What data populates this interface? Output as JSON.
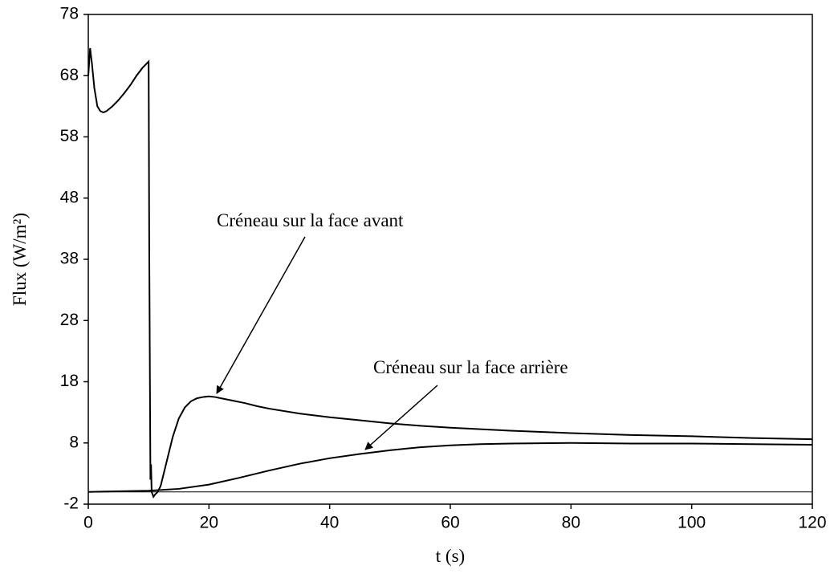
{
  "chart_data": {
    "type": "line",
    "xlabel": "t (s)",
    "ylabel": "Flux (W/m²)",
    "xlim": [
      0,
      120
    ],
    "xticks": [
      0,
      20,
      40,
      60,
      80,
      100,
      120
    ],
    "ylim": [
      -2,
      78
    ],
    "yticks": [
      -2,
      8,
      18,
      28,
      38,
      48,
      58,
      68,
      78
    ],
    "series": [
      {
        "name": "Créneau sur la face avant",
        "color": "#000000",
        "x": [
          0,
          0.3,
          0.6,
          1,
          1.5,
          2,
          2.5,
          3,
          4,
          5,
          6,
          7,
          8,
          9,
          10,
          10.1,
          10.3,
          10.4,
          10.5,
          10.8,
          11,
          11.5,
          12,
          13,
          14,
          15,
          16,
          17,
          18,
          19,
          20,
          21,
          22,
          24,
          26,
          28,
          30,
          35,
          40,
          45,
          50,
          55,
          60,
          70,
          80,
          90,
          100,
          110,
          120
        ],
        "values": [
          68,
          72.5,
          70,
          66,
          63,
          62.2,
          62,
          62.2,
          63,
          64,
          65.2,
          66.5,
          68,
          69.3,
          70.3,
          40,
          2,
          4.5,
          0,
          -0.8,
          -0.5,
          0,
          1,
          5,
          9,
          12,
          13.8,
          14.8,
          15.3,
          15.5,
          15.6,
          15.5,
          15.3,
          14.9,
          14.5,
          14,
          13.6,
          12.8,
          12.2,
          11.7,
          11.2,
          10.8,
          10.5,
          10,
          9.6,
          9.3,
          9.1,
          8.8,
          8.6
        ]
      },
      {
        "name": "Créneau sur la face arrière",
        "color": "#000000",
        "x": [
          0,
          10,
          15,
          20,
          25,
          30,
          35,
          40,
          45,
          50,
          55,
          60,
          65,
          70,
          80,
          90,
          100,
          110,
          120
        ],
        "values": [
          0,
          0.2,
          0.5,
          1.2,
          2.3,
          3.5,
          4.6,
          5.5,
          6.2,
          6.8,
          7.3,
          7.6,
          7.8,
          7.9,
          8,
          7.9,
          7.9,
          7.8,
          7.7
        ]
      }
    ]
  }
}
